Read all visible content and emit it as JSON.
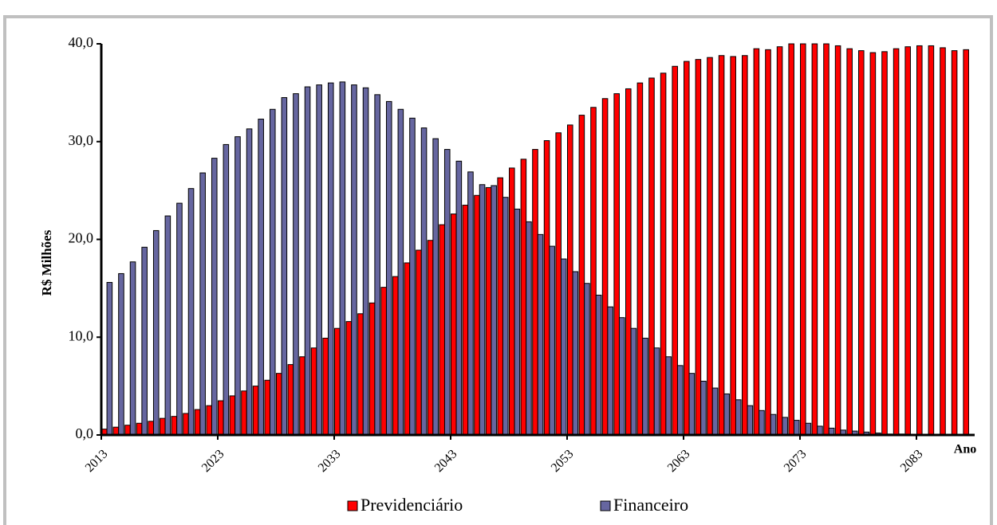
{
  "chart_data": {
    "type": "bar",
    "y_label": "R$ Milhões",
    "x_label": "Ano",
    "categories": [
      "2013",
      null,
      null,
      null,
      null,
      null,
      null,
      null,
      null,
      null,
      "2023",
      null,
      null,
      null,
      null,
      null,
      null,
      null,
      null,
      null,
      "2033",
      null,
      null,
      null,
      null,
      null,
      null,
      null,
      null,
      null,
      "2043",
      null,
      null,
      null,
      null,
      null,
      null,
      null,
      null,
      null,
      "2053",
      null,
      null,
      null,
      null,
      null,
      null,
      null,
      null,
      null,
      "2063",
      null,
      null,
      null,
      null,
      null,
      null,
      null,
      null,
      null,
      "2073",
      null,
      null,
      null,
      null,
      null,
      null,
      null,
      null,
      null,
      "2083",
      null,
      null,
      null,
      null
    ],
    "series": [
      {
        "name": "Previdenciário",
        "color": "#ff0000",
        "values": [
          0.6,
          0.8,
          1.0,
          1.2,
          1.4,
          1.7,
          1.9,
          2.2,
          2.6,
          3.0,
          3.5,
          4.0,
          4.5,
          5.0,
          5.6,
          6.3,
          7.2,
          8.0,
          8.9,
          9.9,
          10.9,
          11.6,
          12.4,
          13.5,
          15.1,
          16.2,
          17.6,
          18.9,
          19.9,
          21.5,
          22.6,
          23.5,
          24.5,
          25.3,
          26.3,
          27.3,
          28.2,
          29.2,
          30.1,
          30.9,
          31.7,
          32.7,
          33.5,
          34.4,
          34.9,
          35.4,
          36.0,
          36.5,
          37.0,
          37.7,
          38.2,
          38.4,
          38.6,
          38.8,
          38.7,
          38.8,
          39.5,
          39.4,
          39.7,
          40.0,
          40.0,
          40.0,
          40.0,
          39.8,
          39.5,
          39.3,
          39.1,
          39.2,
          39.5,
          39.7,
          39.8,
          39.8,
          39.6,
          39.3,
          39.4
        ]
      },
      {
        "name": "Financeiro",
        "color": "#6666a0",
        "values": [
          15.6,
          16.5,
          17.7,
          19.2,
          20.9,
          22.4,
          23.7,
          25.2,
          26.8,
          28.3,
          29.7,
          30.5,
          31.3,
          32.3,
          33.3,
          34.5,
          34.9,
          35.6,
          35.8,
          36.0,
          36.1,
          35.8,
          35.5,
          34.8,
          34.1,
          33.3,
          32.4,
          31.4,
          30.3,
          29.2,
          28.0,
          26.9,
          25.6,
          25.5,
          24.3,
          23.1,
          21.8,
          20.5,
          19.3,
          18.0,
          16.7,
          15.5,
          14.3,
          13.1,
          12.0,
          10.9,
          9.9,
          8.9,
          8.0,
          7.1,
          6.3,
          5.5,
          4.8,
          4.2,
          3.6,
          3.0,
          2.5,
          2.1,
          1.8,
          1.5,
          1.2,
          0.9,
          0.7,
          0.5,
          0.4,
          0.3,
          0.2,
          0.1,
          0.1,
          0.05,
          0,
          0,
          0,
          0,
          0
        ]
      }
    ],
    "ylim": [
      0,
      40
    ],
    "yticks": [
      {
        "value": 0,
        "label": "0,0"
      },
      {
        "value": 10,
        "label": "10,0"
      },
      {
        "value": 20,
        "label": "20,0"
      },
      {
        "value": 30,
        "label": "30,0"
      },
      {
        "value": 40,
        "label": "40,0"
      }
    ],
    "grid": false,
    "legend": "bottom"
  }
}
